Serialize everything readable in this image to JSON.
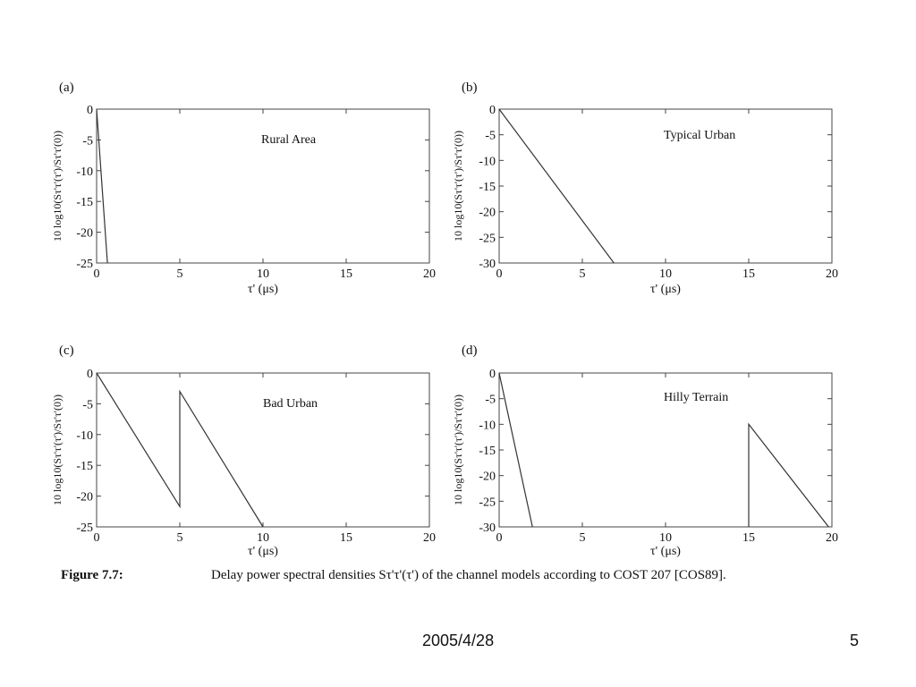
{
  "chart_data": [
    {
      "type": "line",
      "panel_label": "(a)",
      "annotation": "Rural Area",
      "ylabel": "10 log10(Sτ'τ'(τ')/Sτ'τ'(0))",
      "xlabel": "τ' (μs)",
      "xlim": [
        0,
        20
      ],
      "ylim": [
        -25,
        0
      ],
      "xticks": [
        "0",
        "5",
        "10",
        "15",
        "20"
      ],
      "yticks": [
        "0",
        "-5",
        "-10",
        "-15",
        "-20",
        "-25"
      ],
      "grid": false,
      "series": [
        {
          "x": [
            0,
            0.65
          ],
          "y": [
            0,
            -25
          ]
        }
      ]
    },
    {
      "type": "line",
      "panel_label": "(b)",
      "annotation": "Typical Urban",
      "ylabel": "10 log10(Sτ'τ'(τ')/Sτ'τ'(0))",
      "xlabel": "τ' (μs)",
      "xlim": [
        0,
        20
      ],
      "ylim": [
        -30,
        0
      ],
      "xticks": [
        "0",
        "5",
        "10",
        "15",
        "20"
      ],
      "yticks": [
        "0",
        "-5",
        "-10",
        "-15",
        "-20",
        "-25",
        "-30"
      ],
      "grid": false,
      "series": [
        {
          "x": [
            0,
            6.9
          ],
          "y": [
            0,
            -30
          ]
        }
      ]
    },
    {
      "type": "line",
      "panel_label": "(c)",
      "annotation": "Bad Urban",
      "ylabel": "10 log10(Sτ'τ'(τ')/Sτ'τ'(0))",
      "xlabel": "τ' (μs)",
      "xlim": [
        0,
        20
      ],
      "ylim": [
        -25,
        0
      ],
      "xticks": [
        "0",
        "5",
        "10",
        "15",
        "20"
      ],
      "yticks": [
        "0",
        "-5",
        "-10",
        "-15",
        "-20",
        "-25"
      ],
      "grid": false,
      "series": [
        {
          "x": [
            0,
            5,
            5,
            10
          ],
          "y": [
            0,
            -21.7,
            -3,
            -25
          ]
        }
      ]
    },
    {
      "type": "line",
      "panel_label": "(d)",
      "annotation": "Hilly Terrain",
      "ylabel": "10 log10(Sτ'τ'(τ')/Sτ'τ'(0))",
      "xlabel": "τ' (μs)",
      "xlim": [
        0,
        20
      ],
      "ylim": [
        -30,
        0
      ],
      "xticks": [
        "0",
        "5",
        "10",
        "15",
        "20"
      ],
      "yticks": [
        "0",
        "-5",
        "-10",
        "-15",
        "-20",
        "-25",
        "-30"
      ],
      "grid": false,
      "series": [
        {
          "x": [
            0,
            2
          ],
          "y": [
            0,
            -30
          ]
        },
        {
          "x": [
            15,
            15,
            19.8
          ],
          "y": [
            -30,
            -10,
            -30
          ]
        }
      ]
    }
  ],
  "caption": {
    "label": "Figure 7.7:",
    "text": "Delay power spectral densities Sτ'τ'(τ') of the channel models according to COST 207 [COS89]."
  },
  "footer": {
    "date": "2005/4/28",
    "page": "5"
  },
  "colors": {
    "line": "#333333",
    "text": "#111111",
    "background": "#ffffff"
  }
}
